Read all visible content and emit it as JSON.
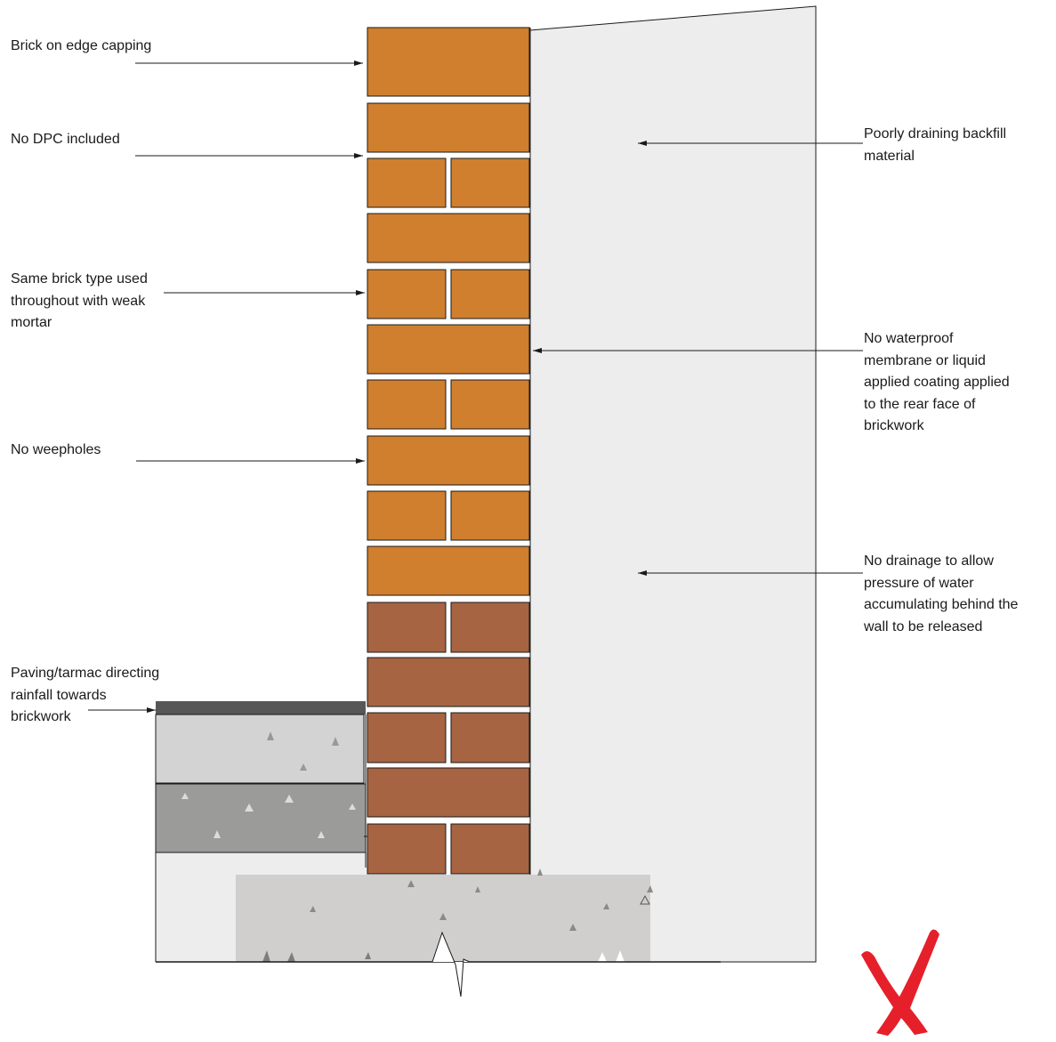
{
  "labels": {
    "capping": [
      "Brick on edge capping"
    ],
    "dpc": [
      "No DPC included"
    ],
    "brick_type": [
      "Same brick type used",
      "throughout with weak",
      "mortar"
    ],
    "weepholes": [
      "No weepholes"
    ],
    "paving": [
      "Paving/tarmac directing",
      "rainfall towards",
      "brickwork"
    ],
    "backfill": [
      "Poorly draining backfill",
      "material"
    ],
    "membrane": [
      "No waterproof",
      "membrane or liquid",
      "applied coating applied",
      "to the rear face of",
      "brickwork"
    ],
    "drainage": [
      "No drainage to allow",
      "pressure of water",
      "accumulating behind the",
      "wall to be released"
    ]
  },
  "icons": {
    "verdict": "red-cross-icon"
  },
  "colors": {
    "upper_brick": "#CF7F2E",
    "lower_brick": "#A66443",
    "backfill": "#EDEDED",
    "paving_top": "#D3D3D3",
    "paving_bottom": "#9B9B9A",
    "tarmac": "#575757",
    "foundation": "#D0CFCD",
    "cross": "#E5202A"
  }
}
